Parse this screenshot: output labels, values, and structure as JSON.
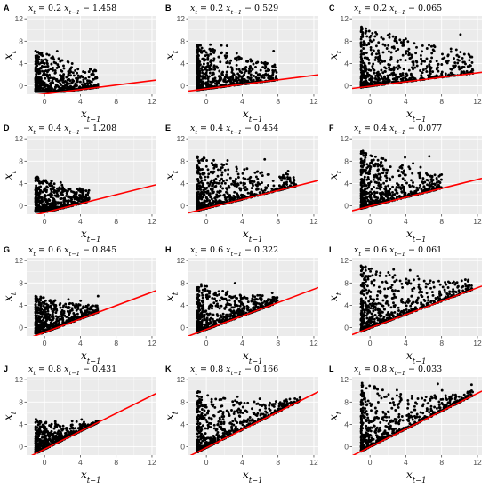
{
  "chart_data": [
    {
      "type": "scatter",
      "letter": "A",
      "title": "x_t = 0.2 x_{t−1} − 1.458",
      "xlabel": "x_{t−1}",
      "ylabel": "x_t",
      "xlim": [
        -2,
        12.5
      ],
      "ylim": [
        -1.5,
        12.5
      ],
      "xticks": [
        0,
        4,
        8,
        12
      ],
      "yticks": [
        0,
        4,
        8,
        12
      ],
      "line": {
        "slope": 0.2,
        "intercept": -1.458
      },
      "points": {
        "x_max": 6,
        "y_max": 6.5
      }
    },
    {
      "type": "scatter",
      "letter": "B",
      "title": "x_t = 0.2 x_{t−1} − 0.529",
      "xlabel": "x_{t−1}",
      "ylabel": "x_t",
      "xlim": [
        -2,
        12.5
      ],
      "ylim": [
        -1.5,
        12.5
      ],
      "xticks": [
        0,
        4,
        8,
        12
      ],
      "yticks": [
        0,
        4,
        8,
        12
      ],
      "line": {
        "slope": 0.2,
        "intercept": -0.529
      },
      "points": {
        "x_max": 8,
        "y_max": 7.5
      }
    },
    {
      "type": "scatter",
      "letter": "C",
      "title": "x_t = 0.2 x_{t−1} − 0.065",
      "xlabel": "x_{t−1}",
      "ylabel": "x_t",
      "xlim": [
        -2,
        12.5
      ],
      "ylim": [
        -1.5,
        12.5
      ],
      "xticks": [
        0,
        4,
        8,
        12
      ],
      "yticks": [
        0,
        4,
        8,
        12
      ],
      "line": {
        "slope": 0.2,
        "intercept": -0.065
      },
      "points": {
        "x_max": 11.5,
        "y_max": 11
      }
    },
    {
      "type": "scatter",
      "letter": "D",
      "title": "x_t = 0.4 x_{t−1} − 1.208",
      "xlabel": "x_{t−1}",
      "ylabel": "x_t",
      "xlim": [
        -2,
        12.5
      ],
      "ylim": [
        -1.5,
        12.5
      ],
      "xticks": [
        0,
        4,
        8,
        12
      ],
      "yticks": [
        0,
        4,
        8,
        12
      ],
      "line": {
        "slope": 0.4,
        "intercept": -1.208
      },
      "points": {
        "x_max": 5,
        "y_max": 5.5
      }
    },
    {
      "type": "scatter",
      "letter": "E",
      "title": "x_t = 0.4 x_{t−1} − 0.454",
      "xlabel": "x_{t−1}",
      "ylabel": "x_t",
      "xlim": [
        -2,
        12.5
      ],
      "ylim": [
        -1.5,
        12.5
      ],
      "xticks": [
        0,
        4,
        8,
        12
      ],
      "yticks": [
        0,
        4,
        8,
        12
      ],
      "line": {
        "slope": 0.4,
        "intercept": -0.454
      },
      "points": {
        "x_max": 10,
        "y_max": 9
      }
    },
    {
      "type": "scatter",
      "letter": "F",
      "title": "x_t = 0.4 x_{t−1} − 0.077",
      "xlabel": "x_{t−1}",
      "ylabel": "x_t",
      "xlim": [
        -2,
        12.5
      ],
      "ylim": [
        -1.5,
        12.5
      ],
      "xticks": [
        0,
        4,
        8,
        12
      ],
      "yticks": [
        0,
        4,
        8,
        12
      ],
      "line": {
        "slope": 0.4,
        "intercept": -0.077
      },
      "points": {
        "x_max": 8,
        "y_max": 10
      }
    },
    {
      "type": "scatter",
      "letter": "G",
      "title": "x_t = 0.6 x_{t−1} − 0.845",
      "xlabel": "x_{t−1}",
      "ylabel": "x_t",
      "xlim": [
        -2,
        12.5
      ],
      "ylim": [
        -1.5,
        12.5
      ],
      "xticks": [
        0,
        4,
        8,
        12
      ],
      "yticks": [
        0,
        4,
        8,
        12
      ],
      "line": {
        "slope": 0.6,
        "intercept": -0.845
      },
      "points": {
        "x_max": 6,
        "y_max": 6
      }
    },
    {
      "type": "scatter",
      "letter": "H",
      "title": "x_t = 0.6 x_{t−1} − 0.322",
      "xlabel": "x_{t−1}",
      "ylabel": "x_t",
      "xlim": [
        -2,
        12.5
      ],
      "ylim": [
        -1.5,
        12.5
      ],
      "xticks": [
        0,
        4,
        8,
        12
      ],
      "yticks": [
        0,
        4,
        8,
        12
      ],
      "line": {
        "slope": 0.6,
        "intercept": -0.322
      },
      "points": {
        "x_max": 8,
        "y_max": 8
      }
    },
    {
      "type": "scatter",
      "letter": "I",
      "title": "x_t = 0.6 x_{t−1} − 0.061",
      "xlabel": "x_{t−1}",
      "ylabel": "x_t",
      "xlim": [
        -2,
        12.5
      ],
      "ylim": [
        -1.5,
        12.5
      ],
      "xticks": [
        0,
        4,
        8,
        12
      ],
      "yticks": [
        0,
        4,
        8,
        12
      ],
      "line": {
        "slope": 0.6,
        "intercept": -0.061
      },
      "points": {
        "x_max": 11.5,
        "y_max": 11.5
      }
    },
    {
      "type": "scatter",
      "letter": "J",
      "title": "x_t = 0.8 x_{t−1} − 0.431",
      "xlabel": "x_{t−1}",
      "ylabel": "x_t",
      "xlim": [
        -2,
        12.5
      ],
      "ylim": [
        -1.5,
        12.5
      ],
      "xticks": [
        0,
        4,
        8,
        12
      ],
      "yticks": [
        0,
        4,
        8,
        12
      ],
      "line": {
        "slope": 0.8,
        "intercept": -0.431
      },
      "points": {
        "x_max": 6,
        "y_max": 5
      }
    },
    {
      "type": "scatter",
      "letter": "K",
      "title": "x_t = 0.8 x_{t−1} − 0.166",
      "xlabel": "x_{t−1}",
      "ylabel": "x_t",
      "xlim": [
        -2,
        12.5
      ],
      "ylim": [
        -1.5,
        12.5
      ],
      "xticks": [
        0,
        4,
        8,
        12
      ],
      "yticks": [
        0,
        4,
        8,
        12
      ],
      "line": {
        "slope": 0.8,
        "intercept": -0.166
      },
      "points": {
        "x_max": 10.5,
        "y_max": 10
      }
    },
    {
      "type": "scatter",
      "letter": "L",
      "title": "x_t = 0.8 x_{t−1} − 0.033",
      "xlabel": "x_{t−1}",
      "ylabel": "x_t",
      "xlim": [
        -2,
        12.5
      ],
      "ylim": [
        -1.5,
        12.5
      ],
      "xticks": [
        0,
        4,
        8,
        12
      ],
      "yticks": [
        0,
        4,
        8,
        12
      ],
      "line": {
        "slope": 0.8,
        "intercept": -0.033
      },
      "points": {
        "x_max": 11.5,
        "y_max": 11.5
      }
    }
  ],
  "colors": {
    "panel_bg": "#ebebeb",
    "grid": "#ffffff",
    "points": "#000000",
    "line": "#ff0000",
    "tick_text": "#4d4d4d"
  }
}
